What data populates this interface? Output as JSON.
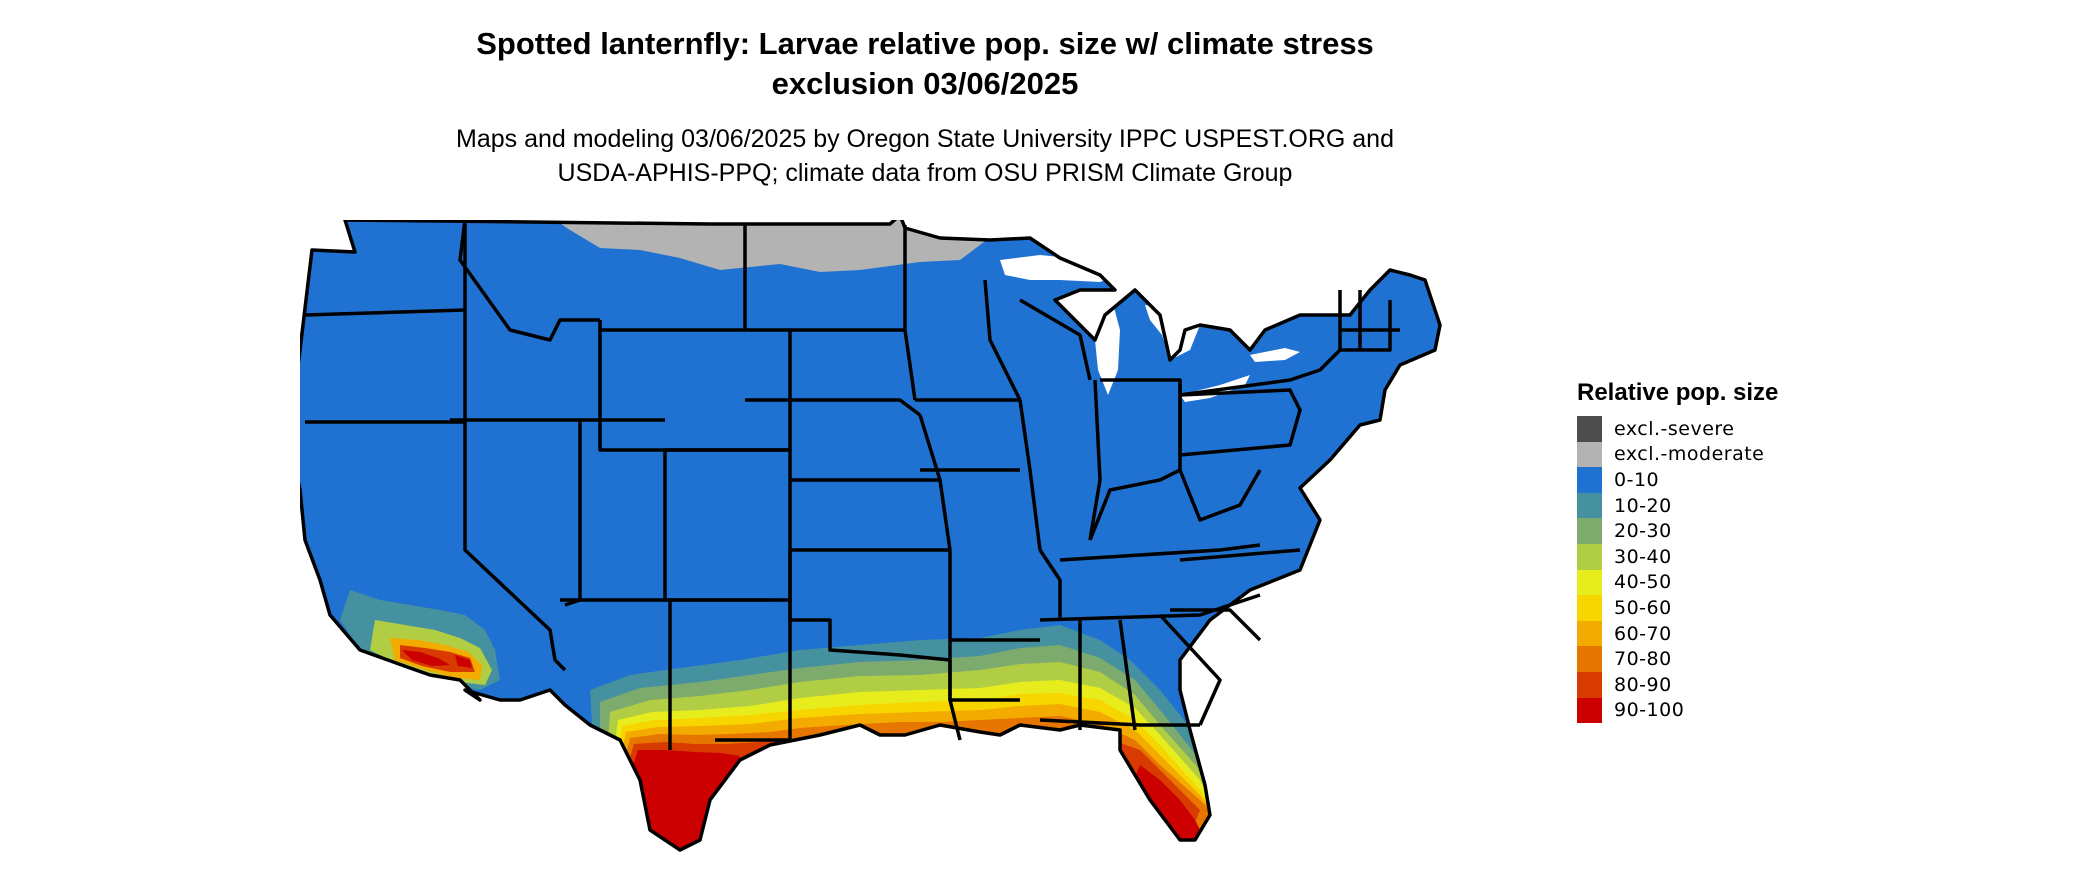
{
  "title_line1": "Spotted lanternfly: Larvae relative pop. size w/ climate stress",
  "title_line2": "exclusion 03/06/2025",
  "subtitle_line1": "Maps and modeling 03/06/2025 by Oregon State University IPPC USPEST.ORG and",
  "subtitle_line2": "USDA-APHIS-PPQ; climate data from OSU PRISM Climate Group",
  "legend": {
    "title": "Relative pop. size",
    "items": [
      {
        "label": "excl.-severe",
        "color": "#4d4d4d"
      },
      {
        "label": "excl.-moderate",
        "color": "#b3b3b3"
      },
      {
        "label": "0-10",
        "color": "#1f72d1"
      },
      {
        "label": "10-20",
        "color": "#4591a0"
      },
      {
        "label": "20-30",
        "color": "#7dab6e"
      },
      {
        "label": "30-40",
        "color": "#b1cd44"
      },
      {
        "label": "40-50",
        "color": "#e7ec1d"
      },
      {
        "label": "50-60",
        "color": "#f7d600"
      },
      {
        "label": "60-70",
        "color": "#f3ab00"
      },
      {
        "label": "70-80",
        "color": "#e77600"
      },
      {
        "label": "80-90",
        "color": "#d83a00"
      },
      {
        "label": "90-100",
        "color": "#cc0000"
      }
    ]
  }
}
